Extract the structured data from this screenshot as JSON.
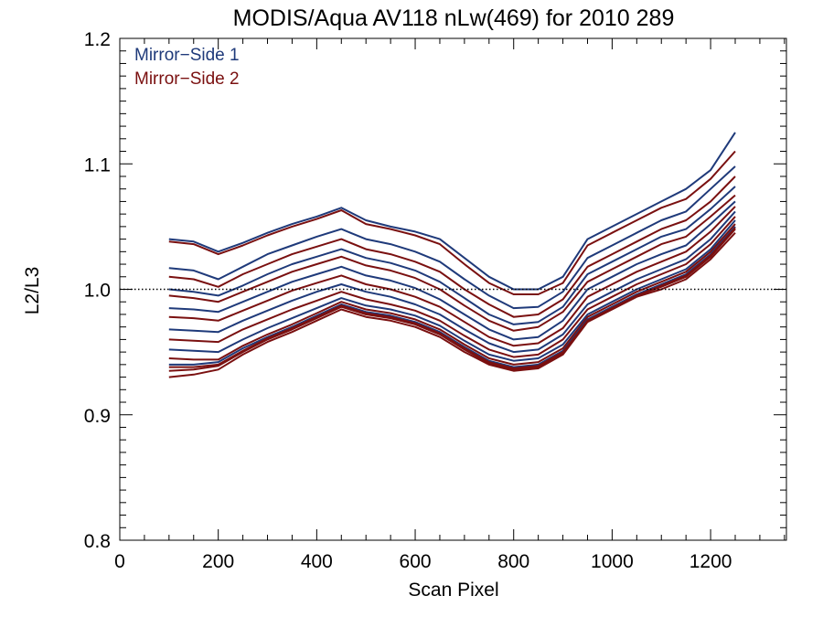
{
  "chart_data": {
    "type": "line",
    "title": "MODIS/Aqua AV118 nLw(469) for 2010 289",
    "xlabel": "Scan Pixel",
    "ylabel": "L2/L3",
    "xlim": [
      0,
      1354
    ],
    "ylim": [
      0.8,
      1.2
    ],
    "xticks": [
      0,
      200,
      400,
      600,
      800,
      1000,
      1200
    ],
    "xtick_labels": [
      "0",
      "200",
      "400",
      "600",
      "800",
      "1000",
      "1200"
    ],
    "yticks": [
      0.8,
      0.9,
      1.0,
      1.1,
      1.2
    ],
    "ytick_labels": [
      "0.8",
      "0.9",
      "1.0",
      "1.1",
      "1.2"
    ],
    "reference_line": 1.0,
    "grid": false,
    "legend_position": "top-left",
    "colors": {
      "mirror_side_1": "#1f3a7a",
      "mirror_side_2": "#7a1010"
    },
    "legend": [
      {
        "label": "Mirror−Side 1",
        "color": "#1f3a7a"
      },
      {
        "label": "Mirror−Side 2",
        "color": "#7a1010"
      }
    ],
    "x": [
      100,
      150,
      200,
      250,
      300,
      350,
      400,
      450,
      500,
      550,
      600,
      650,
      700,
      750,
      800,
      850,
      900,
      950,
      1000,
      1050,
      1100,
      1150,
      1200,
      1250
    ],
    "series": [
      {
        "side": 1,
        "values": [
          1.04,
          1.038,
          1.03,
          1.037,
          1.045,
          1.052,
          1.058,
          1.065,
          1.055,
          1.05,
          1.046,
          1.04,
          1.025,
          1.01,
          1.0,
          1.0,
          1.01,
          1.04,
          1.05,
          1.06,
          1.07,
          1.08,
          1.095,
          1.125
        ]
      },
      {
        "side": 2,
        "values": [
          1.038,
          1.036,
          1.028,
          1.035,
          1.043,
          1.05,
          1.056,
          1.063,
          1.052,
          1.048,
          1.043,
          1.036,
          1.02,
          1.005,
          0.996,
          0.996,
          1.005,
          1.035,
          1.045,
          1.055,
          1.065,
          1.072,
          1.088,
          1.11
        ]
      },
      {
        "side": 1,
        "values": [
          1.017,
          1.015,
          1.008,
          1.018,
          1.028,
          1.035,
          1.042,
          1.048,
          1.04,
          1.036,
          1.03,
          1.022,
          1.008,
          0.995,
          0.985,
          0.986,
          0.998,
          1.025,
          1.035,
          1.045,
          1.055,
          1.062,
          1.08,
          1.098
        ]
      },
      {
        "side": 2,
        "values": [
          1.01,
          1.008,
          1.002,
          1.012,
          1.02,
          1.028,
          1.034,
          1.04,
          1.032,
          1.028,
          1.022,
          1.014,
          1.0,
          0.988,
          0.978,
          0.98,
          0.992,
          1.018,
          1.028,
          1.038,
          1.048,
          1.055,
          1.07,
          1.09
        ]
      },
      {
        "side": 1,
        "values": [
          1.0,
          0.998,
          0.995,
          1.003,
          1.012,
          1.02,
          1.026,
          1.032,
          1.025,
          1.021,
          1.015,
          1.006,
          0.993,
          0.98,
          0.972,
          0.974,
          0.986,
          1.012,
          1.022,
          1.032,
          1.042,
          1.048,
          1.064,
          1.082
        ]
      },
      {
        "side": 2,
        "values": [
          0.995,
          0.993,
          0.99,
          0.998,
          1.006,
          1.014,
          1.02,
          1.026,
          1.019,
          1.015,
          1.009,
          1.0,
          0.987,
          0.975,
          0.967,
          0.97,
          0.982,
          1.006,
          1.016,
          1.026,
          1.036,
          1.042,
          1.058,
          1.075
        ]
      },
      {
        "side": 1,
        "values": [
          0.985,
          0.984,
          0.982,
          0.99,
          0.998,
          1.006,
          1.012,
          1.018,
          1.011,
          1.007,
          1.001,
          0.992,
          0.98,
          0.968,
          0.96,
          0.962,
          0.975,
          1.0,
          1.01,
          1.02,
          1.028,
          1.035,
          1.052,
          1.07
        ]
      },
      {
        "side": 2,
        "values": [
          0.978,
          0.977,
          0.975,
          0.983,
          0.991,
          0.999,
          1.005,
          1.011,
          1.004,
          1.0,
          0.994,
          0.986,
          0.974,
          0.962,
          0.955,
          0.957,
          0.969,
          0.994,
          1.004,
          1.014,
          1.022,
          1.03,
          1.046,
          1.066
        ]
      },
      {
        "side": 1,
        "values": [
          0.968,
          0.967,
          0.966,
          0.975,
          0.983,
          0.991,
          0.998,
          1.004,
          0.998,
          0.994,
          0.988,
          0.98,
          0.968,
          0.957,
          0.95,
          0.952,
          0.964,
          0.988,
          0.998,
          1.008,
          1.016,
          1.024,
          1.04,
          1.062
        ]
      },
      {
        "side": 2,
        "values": [
          0.96,
          0.959,
          0.958,
          0.968,
          0.976,
          0.984,
          0.991,
          0.998,
          0.992,
          0.988,
          0.983,
          0.975,
          0.963,
          0.952,
          0.946,
          0.948,
          0.96,
          0.984,
          0.994,
          1.004,
          1.012,
          1.02,
          1.036,
          1.058
        ]
      },
      {
        "side": 1,
        "values": [
          0.952,
          0.951,
          0.95,
          0.96,
          0.969,
          0.977,
          0.985,
          0.993,
          0.987,
          0.984,
          0.979,
          0.971,
          0.959,
          0.948,
          0.943,
          0.945,
          0.956,
          0.98,
          0.99,
          1.0,
          1.008,
          1.016,
          1.032,
          1.055
        ]
      },
      {
        "side": 2,
        "values": [
          0.945,
          0.944,
          0.944,
          0.955,
          0.964,
          0.972,
          0.981,
          0.99,
          0.984,
          0.981,
          0.976,
          0.968,
          0.956,
          0.945,
          0.94,
          0.942,
          0.953,
          0.978,
          0.988,
          0.998,
          1.006,
          1.014,
          1.03,
          1.052
        ]
      },
      {
        "side": 1,
        "values": [
          0.94,
          0.94,
          0.942,
          0.953,
          0.962,
          0.97,
          0.979,
          0.988,
          0.982,
          0.979,
          0.974,
          0.966,
          0.954,
          0.943,
          0.938,
          0.94,
          0.951,
          0.976,
          0.986,
          0.996,
          1.004,
          1.012,
          1.028,
          1.05
        ]
      },
      {
        "side": 2,
        "values": [
          0.935,
          0.936,
          0.939,
          0.95,
          0.96,
          0.968,
          0.977,
          0.986,
          0.98,
          0.977,
          0.972,
          0.964,
          0.952,
          0.941,
          0.936,
          0.938,
          0.949,
          0.975,
          0.985,
          0.995,
          1.002,
          1.01,
          1.026,
          1.048
        ]
      },
      {
        "side": 2,
        "values": [
          0.93,
          0.932,
          0.936,
          0.948,
          0.958,
          0.966,
          0.975,
          0.984,
          0.978,
          0.975,
          0.97,
          0.962,
          0.95,
          0.94,
          0.935,
          0.937,
          0.948,
          0.974,
          0.984,
          0.994,
          1.0,
          1.008,
          1.024,
          1.045
        ]
      },
      {
        "side": 2,
        "values": [
          0.938,
          0.938,
          0.94,
          0.951,
          0.961,
          0.969,
          0.978,
          0.987,
          0.981,
          0.978,
          0.973,
          0.965,
          0.953,
          0.942,
          0.937,
          0.939,
          0.95,
          0.975,
          0.985,
          0.995,
          1.003,
          1.011,
          1.027,
          1.049
        ]
      }
    ]
  }
}
